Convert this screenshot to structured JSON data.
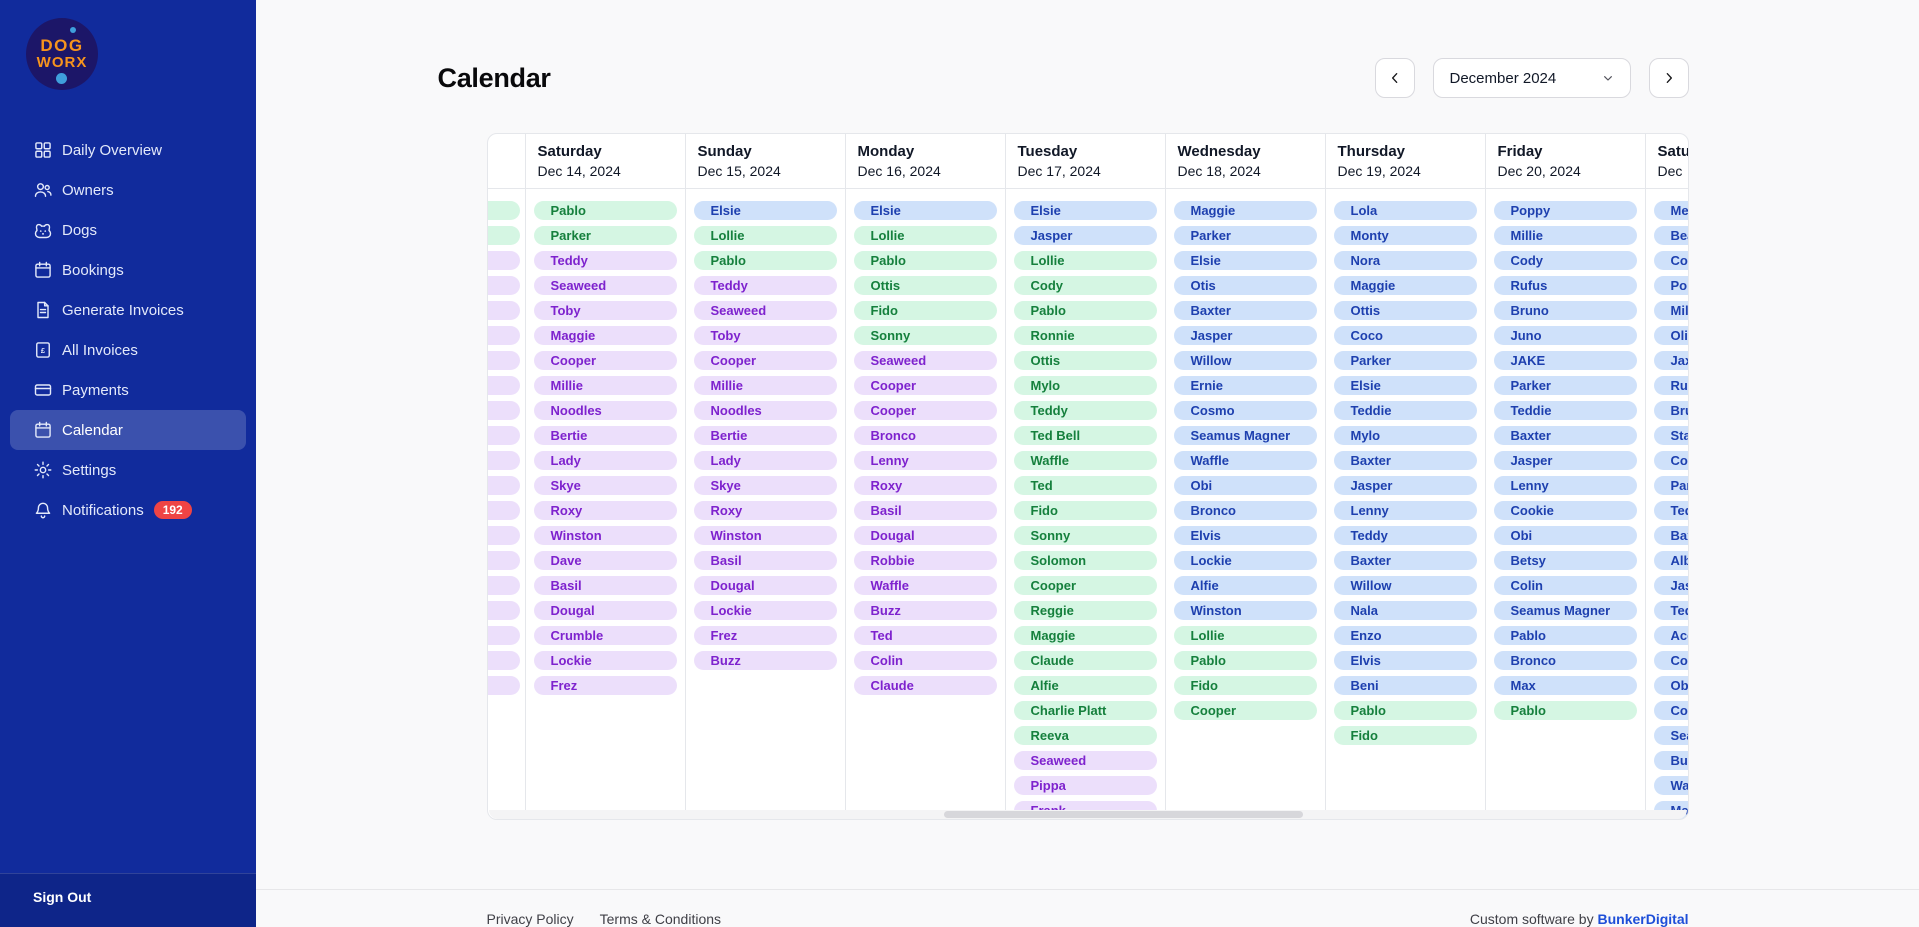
{
  "sidebar": {
    "logo": {
      "line1": "DOG",
      "line2": "WORX"
    },
    "items": [
      {
        "label": "Daily Overview",
        "icon": "grid-icon",
        "active": false
      },
      {
        "label": "Owners",
        "icon": "users-icon",
        "active": false
      },
      {
        "label": "Dogs",
        "icon": "dog-icon",
        "active": false
      },
      {
        "label": "Bookings",
        "icon": "calendar-icon",
        "active": false
      },
      {
        "label": "Generate Invoices",
        "icon": "document-icon",
        "active": false
      },
      {
        "label": "All Invoices",
        "icon": "invoice-icon",
        "active": false
      },
      {
        "label": "Payments",
        "icon": "card-icon",
        "active": false
      },
      {
        "label": "Calendar",
        "icon": "calendar-icon",
        "active": true
      },
      {
        "label": "Settings",
        "icon": "gear-icon",
        "active": false
      },
      {
        "label": "Notifications",
        "icon": "bell-icon",
        "active": false,
        "badge": "192"
      }
    ],
    "sign_out_label": "Sign Out"
  },
  "header": {
    "title": "Calendar",
    "month_label": "December 2024",
    "prev_icon": "chevron-left-icon",
    "next_icon": "chevron-right-icon",
    "dropdown_icon": "chevron-down-icon"
  },
  "calendar": {
    "days": [
      {
        "weekday": "",
        "date": "",
        "partial": "left",
        "entries": [
          {
            "n": "",
            "c": "green"
          },
          {
            "n": "",
            "c": "green"
          },
          {
            "n": "",
            "c": "purple"
          },
          {
            "n": "",
            "c": "purple"
          },
          {
            "n": "",
            "c": "purple"
          },
          {
            "n": "",
            "c": "purple"
          },
          {
            "n": "",
            "c": "purple"
          },
          {
            "n": "",
            "c": "purple"
          },
          {
            "n": "",
            "c": "purple"
          },
          {
            "n": "",
            "c": "purple"
          },
          {
            "n": "",
            "c": "purple"
          },
          {
            "n": "",
            "c": "purple"
          },
          {
            "n": "",
            "c": "purple"
          },
          {
            "n": "",
            "c": "purple"
          },
          {
            "n": "",
            "c": "purple"
          },
          {
            "n": "",
            "c": "purple"
          },
          {
            "n": "",
            "c": "purple"
          },
          {
            "n": "",
            "c": "purple"
          },
          {
            "n": "",
            "c": "purple"
          },
          {
            "n": "",
            "c": "purple"
          }
        ]
      },
      {
        "weekday": "Saturday",
        "date": "Dec 14, 2024",
        "entries": [
          {
            "n": "Pablo",
            "c": "green"
          },
          {
            "n": "Parker",
            "c": "green"
          },
          {
            "n": "Teddy",
            "c": "purple"
          },
          {
            "n": "Seaweed",
            "c": "purple"
          },
          {
            "n": "Toby",
            "c": "purple"
          },
          {
            "n": "Maggie",
            "c": "purple"
          },
          {
            "n": "Cooper",
            "c": "purple"
          },
          {
            "n": "Millie",
            "c": "purple"
          },
          {
            "n": "Noodles",
            "c": "purple"
          },
          {
            "n": "Bertie",
            "c": "purple"
          },
          {
            "n": "Lady",
            "c": "purple"
          },
          {
            "n": "Skye",
            "c": "purple"
          },
          {
            "n": "Roxy",
            "c": "purple"
          },
          {
            "n": "Winston",
            "c": "purple"
          },
          {
            "n": "Dave",
            "c": "purple"
          },
          {
            "n": "Basil",
            "c": "purple"
          },
          {
            "n": "Dougal",
            "c": "purple"
          },
          {
            "n": "Crumble",
            "c": "purple"
          },
          {
            "n": "Lockie",
            "c": "purple"
          },
          {
            "n": "Frez",
            "c": "purple"
          }
        ]
      },
      {
        "weekday": "Sunday",
        "date": "Dec 15, 2024",
        "entries": [
          {
            "n": "Elsie",
            "c": "blue"
          },
          {
            "n": "Lollie",
            "c": "green"
          },
          {
            "n": "Pablo",
            "c": "green"
          },
          {
            "n": "Teddy",
            "c": "purple"
          },
          {
            "n": "Seaweed",
            "c": "purple"
          },
          {
            "n": "Toby",
            "c": "purple"
          },
          {
            "n": "Cooper",
            "c": "purple"
          },
          {
            "n": "Millie",
            "c": "purple"
          },
          {
            "n": "Noodles",
            "c": "purple"
          },
          {
            "n": "Bertie",
            "c": "purple"
          },
          {
            "n": "Lady",
            "c": "purple"
          },
          {
            "n": "Skye",
            "c": "purple"
          },
          {
            "n": "Roxy",
            "c": "purple"
          },
          {
            "n": "Winston",
            "c": "purple"
          },
          {
            "n": "Basil",
            "c": "purple"
          },
          {
            "n": "Dougal",
            "c": "purple"
          },
          {
            "n": "Lockie",
            "c": "purple"
          },
          {
            "n": "Frez",
            "c": "purple"
          },
          {
            "n": "Buzz",
            "c": "purple"
          }
        ]
      },
      {
        "weekday": "Monday",
        "date": "Dec 16, 2024",
        "entries": [
          {
            "n": "Elsie",
            "c": "blue"
          },
          {
            "n": "Lollie",
            "c": "green"
          },
          {
            "n": "Pablo",
            "c": "green"
          },
          {
            "n": "Ottis",
            "c": "green"
          },
          {
            "n": "Fido",
            "c": "green"
          },
          {
            "n": "Sonny",
            "c": "green"
          },
          {
            "n": "Seaweed",
            "c": "purple"
          },
          {
            "n": "Cooper",
            "c": "purple"
          },
          {
            "n": "Cooper",
            "c": "purple"
          },
          {
            "n": "Bronco",
            "c": "purple"
          },
          {
            "n": "Lenny",
            "c": "purple"
          },
          {
            "n": "Roxy",
            "c": "purple"
          },
          {
            "n": "Basil",
            "c": "purple"
          },
          {
            "n": "Dougal",
            "c": "purple"
          },
          {
            "n": "Robbie",
            "c": "purple"
          },
          {
            "n": "Waffle",
            "c": "purple"
          },
          {
            "n": "Buzz",
            "c": "purple"
          },
          {
            "n": "Ted",
            "c": "purple"
          },
          {
            "n": "Colin",
            "c": "purple"
          },
          {
            "n": "Claude",
            "c": "purple"
          }
        ]
      },
      {
        "weekday": "Tuesday",
        "date": "Dec 17, 2024",
        "entries": [
          {
            "n": "Elsie",
            "c": "blue"
          },
          {
            "n": "Jasper",
            "c": "blue"
          },
          {
            "n": "Lollie",
            "c": "green"
          },
          {
            "n": "Cody",
            "c": "green"
          },
          {
            "n": "Pablo",
            "c": "green"
          },
          {
            "n": "Ronnie",
            "c": "green"
          },
          {
            "n": "Ottis",
            "c": "green"
          },
          {
            "n": "Mylo",
            "c": "green"
          },
          {
            "n": "Teddy",
            "c": "green"
          },
          {
            "n": "Ted Bell",
            "c": "green"
          },
          {
            "n": "Waffle",
            "c": "green"
          },
          {
            "n": "Ted",
            "c": "green"
          },
          {
            "n": "Fido",
            "c": "green"
          },
          {
            "n": "Sonny",
            "c": "green"
          },
          {
            "n": "Solomon",
            "c": "green"
          },
          {
            "n": "Cooper",
            "c": "green"
          },
          {
            "n": "Reggie",
            "c": "green"
          },
          {
            "n": "Maggie",
            "c": "green"
          },
          {
            "n": "Claude",
            "c": "green"
          },
          {
            "n": "Alfie",
            "c": "green"
          },
          {
            "n": "Charlie Platt",
            "c": "green"
          },
          {
            "n": "Reeva",
            "c": "green"
          },
          {
            "n": "Seaweed",
            "c": "purple"
          },
          {
            "n": "Pippa",
            "c": "purple"
          },
          {
            "n": "Frank",
            "c": "purple"
          }
        ]
      },
      {
        "weekday": "Wednesday",
        "date": "Dec 18, 2024",
        "entries": [
          {
            "n": "Maggie",
            "c": "blue"
          },
          {
            "n": "Parker",
            "c": "blue"
          },
          {
            "n": "Elsie",
            "c": "blue"
          },
          {
            "n": "Otis",
            "c": "blue"
          },
          {
            "n": "Baxter",
            "c": "blue"
          },
          {
            "n": "Jasper",
            "c": "blue"
          },
          {
            "n": "Willow",
            "c": "blue"
          },
          {
            "n": "Ernie",
            "c": "blue"
          },
          {
            "n": "Cosmo",
            "c": "blue"
          },
          {
            "n": "Seamus Magner",
            "c": "blue"
          },
          {
            "n": "Waffle",
            "c": "blue"
          },
          {
            "n": "Obi",
            "c": "blue"
          },
          {
            "n": "Bronco",
            "c": "blue"
          },
          {
            "n": "Elvis",
            "c": "blue"
          },
          {
            "n": "Lockie",
            "c": "blue"
          },
          {
            "n": "Alfie",
            "c": "blue"
          },
          {
            "n": "Winston",
            "c": "blue"
          },
          {
            "n": "Lollie",
            "c": "green"
          },
          {
            "n": "Pablo",
            "c": "green"
          },
          {
            "n": "Fido",
            "c": "green"
          },
          {
            "n": "Cooper",
            "c": "green"
          }
        ]
      },
      {
        "weekday": "Thursday",
        "date": "Dec 19, 2024",
        "entries": [
          {
            "n": "Lola",
            "c": "blue"
          },
          {
            "n": "Monty",
            "c": "blue"
          },
          {
            "n": "Nora",
            "c": "blue"
          },
          {
            "n": "Maggie",
            "c": "blue"
          },
          {
            "n": "Ottis",
            "c": "blue"
          },
          {
            "n": "Coco",
            "c": "blue"
          },
          {
            "n": "Parker",
            "c": "blue"
          },
          {
            "n": "Elsie",
            "c": "blue"
          },
          {
            "n": "Teddie",
            "c": "blue"
          },
          {
            "n": "Mylo",
            "c": "blue"
          },
          {
            "n": "Baxter",
            "c": "blue"
          },
          {
            "n": "Jasper",
            "c": "blue"
          },
          {
            "n": "Lenny",
            "c": "blue"
          },
          {
            "n": "Teddy",
            "c": "blue"
          },
          {
            "n": "Baxter",
            "c": "blue"
          },
          {
            "n": "Willow",
            "c": "blue"
          },
          {
            "n": "Nala",
            "c": "blue"
          },
          {
            "n": "Enzo",
            "c": "blue"
          },
          {
            "n": "Elvis",
            "c": "blue"
          },
          {
            "n": "Beni",
            "c": "blue"
          },
          {
            "n": "Pablo",
            "c": "green"
          },
          {
            "n": "Fido",
            "c": "green"
          }
        ]
      },
      {
        "weekday": "Friday",
        "date": "Dec 20, 2024",
        "entries": [
          {
            "n": "Poppy",
            "c": "blue"
          },
          {
            "n": "Millie",
            "c": "blue"
          },
          {
            "n": "Cody",
            "c": "blue"
          },
          {
            "n": "Rufus",
            "c": "blue"
          },
          {
            "n": "Bruno",
            "c": "blue"
          },
          {
            "n": "Juno",
            "c": "blue"
          },
          {
            "n": "JAKE",
            "c": "blue"
          },
          {
            "n": "Parker",
            "c": "blue"
          },
          {
            "n": "Teddie",
            "c": "blue"
          },
          {
            "n": "Baxter",
            "c": "blue"
          },
          {
            "n": "Jasper",
            "c": "blue"
          },
          {
            "n": "Lenny",
            "c": "blue"
          },
          {
            "n": "Cookie",
            "c": "blue"
          },
          {
            "n": "Obi",
            "c": "blue"
          },
          {
            "n": "Betsy",
            "c": "blue"
          },
          {
            "n": "Colin",
            "c": "blue"
          },
          {
            "n": "Seamus Magner",
            "c": "blue"
          },
          {
            "n": "Pablo",
            "c": "blue"
          },
          {
            "n": "Bronco",
            "c": "blue"
          },
          {
            "n": "Max",
            "c": "blue"
          },
          {
            "n": "Pablo",
            "c": "green"
          }
        ]
      },
      {
        "weekday": "Satu",
        "date": "Dec",
        "partial": "right",
        "entries": [
          {
            "n": "Mer",
            "c": "blue"
          },
          {
            "n": "Bea",
            "c": "blue"
          },
          {
            "n": "Coo",
            "c": "blue"
          },
          {
            "n": "Pop",
            "c": "blue"
          },
          {
            "n": "Milli",
            "c": "blue"
          },
          {
            "n": "Oliv",
            "c": "blue"
          },
          {
            "n": "Jax",
            "c": "blue"
          },
          {
            "n": "Rufu",
            "c": "blue"
          },
          {
            "n": "Brun",
            "c": "blue"
          },
          {
            "n": "Star",
            "c": "blue"
          },
          {
            "n": "Coo",
            "c": "blue"
          },
          {
            "n": "Park",
            "c": "blue"
          },
          {
            "n": "Ted",
            "c": "blue"
          },
          {
            "n": "Bax",
            "c": "blue"
          },
          {
            "n": "Albi",
            "c": "blue"
          },
          {
            "n": "Jasp",
            "c": "blue"
          },
          {
            "n": "Ted",
            "c": "blue"
          },
          {
            "n": "Ace",
            "c": "blue"
          },
          {
            "n": "Coo",
            "c": "blue"
          },
          {
            "n": "Obi",
            "c": "blue"
          },
          {
            "n": "Coli",
            "c": "blue"
          },
          {
            "n": "Sea",
            "c": "blue"
          },
          {
            "n": "Buz",
            "c": "blue"
          },
          {
            "n": "Wal",
            "c": "blue"
          },
          {
            "n": "Max",
            "c": "blue"
          }
        ]
      }
    ]
  },
  "footer": {
    "links": [
      "Privacy Policy",
      "Terms & Conditions"
    ],
    "credit_prefix": "Custom software by ",
    "credit_link": "BunkerDigital"
  },
  "colors": {
    "sidebar_bg": "#112b9c",
    "badge_red": "#ef4444",
    "accent_link": "#1d4ed8",
    "pill_green_bg": "#d5f6e3",
    "pill_green_text": "#15803d",
    "pill_purple_bg": "#ecdffb",
    "pill_purple_text": "#7e22ce",
    "pill_blue_bg": "#cfe1fa",
    "pill_blue_text": "#1e40af"
  }
}
